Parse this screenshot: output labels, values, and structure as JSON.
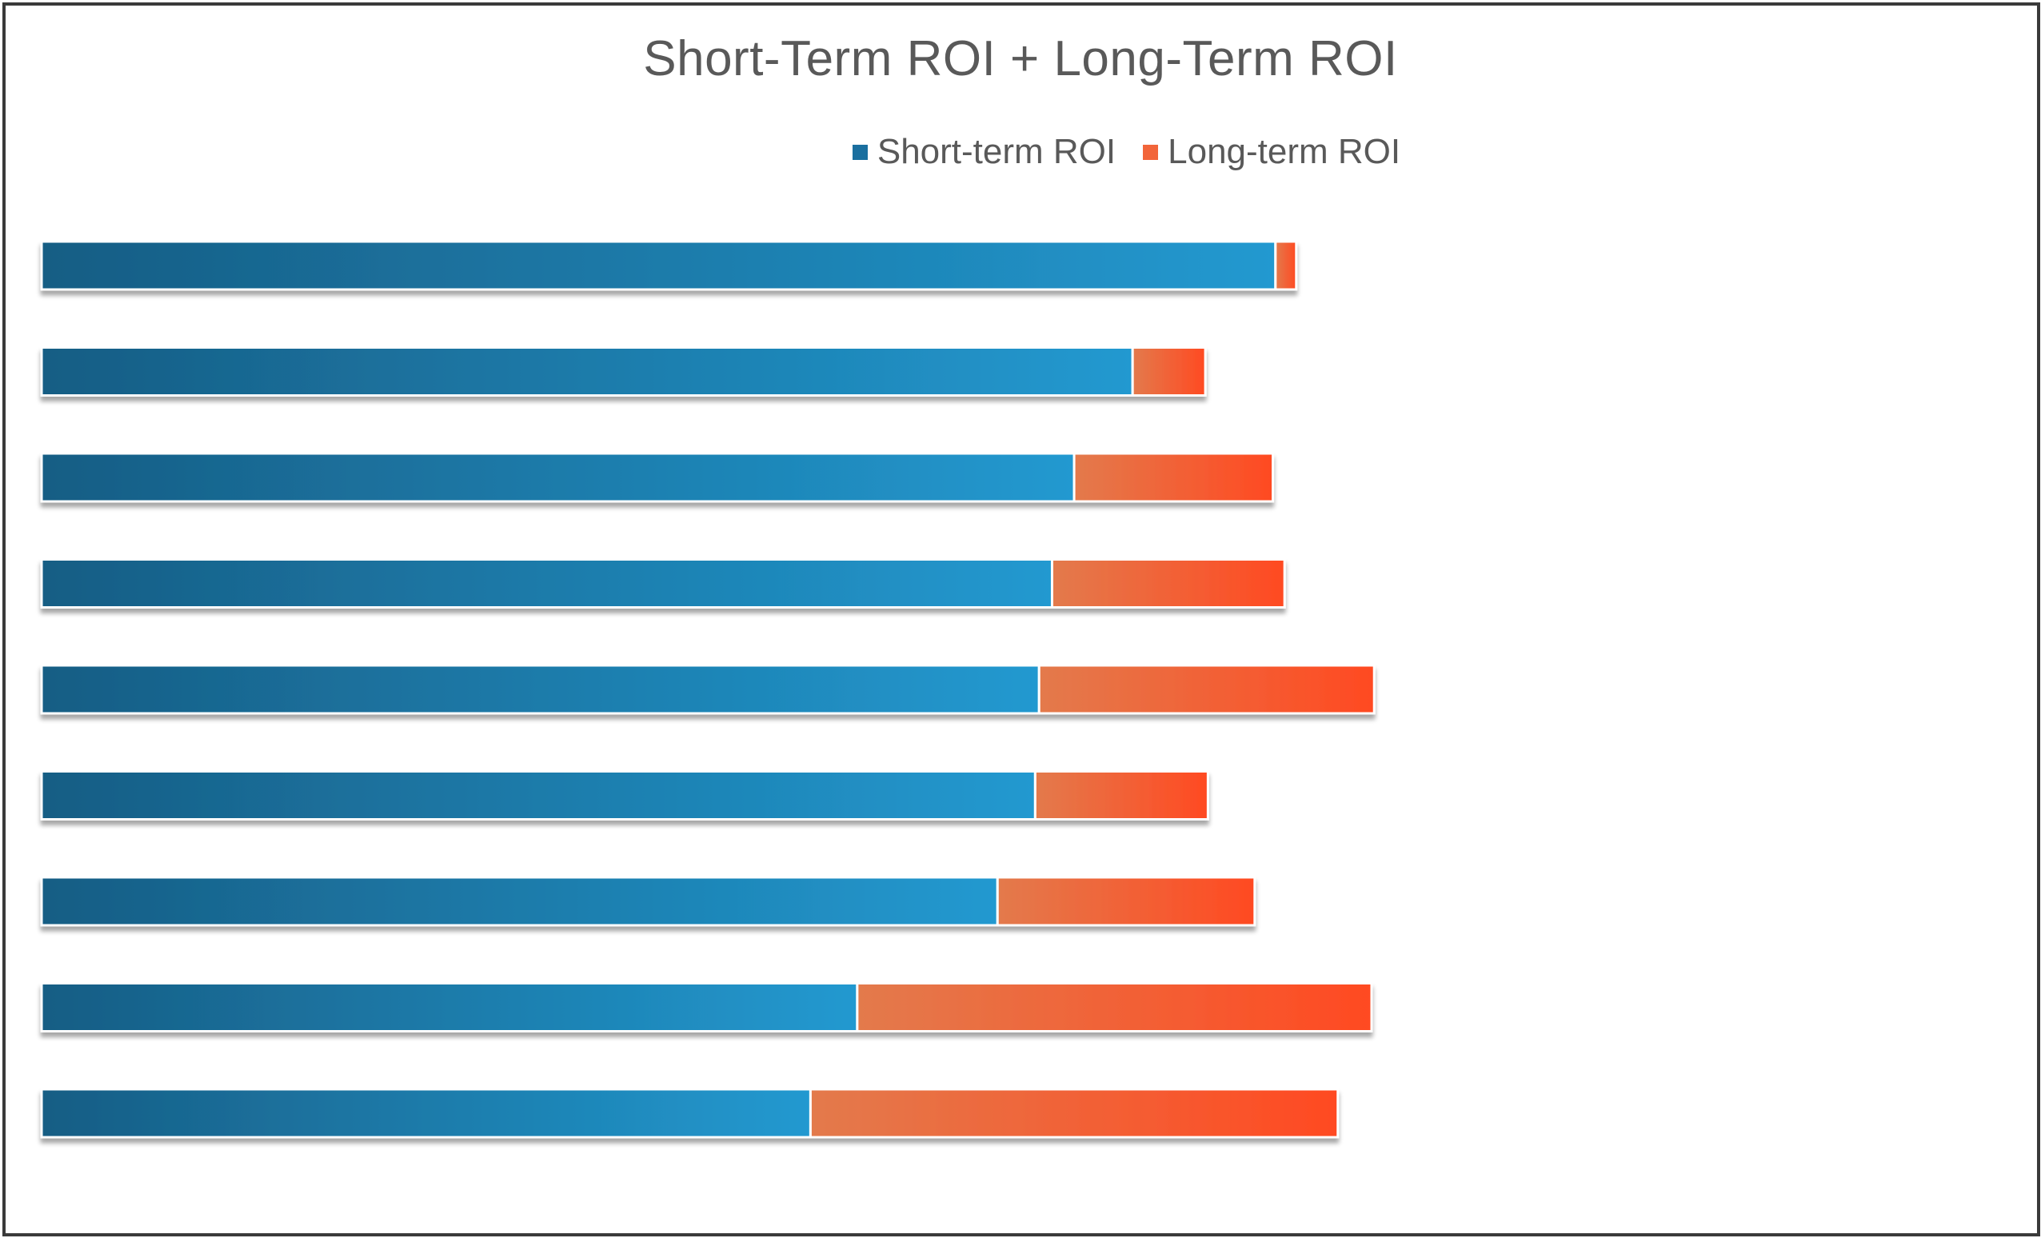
{
  "chart_data": {
    "type": "bar",
    "orientation": "horizontal",
    "stacked": true,
    "title": "Short-Term ROI + Long-Term ROI",
    "xlabel": "",
    "ylabel": "",
    "categories": [
      "",
      "",
      "",
      "",
      "",
      "",
      "",
      "",
      ""
    ],
    "series": [
      {
        "name": "Short-term ROI",
        "color": "#1f7fb4",
        "values": [
          95,
          84,
          79.5,
          77.8,
          76.8,
          76.5,
          73.6,
          62.8,
          59.2
        ]
      },
      {
        "name": "Long-term ROI",
        "color": "#f2653a",
        "values": [
          1.6,
          5.6,
          15.3,
          17.9,
          25.8,
          13.3,
          19.8,
          39.6,
          40.6
        ]
      }
    ],
    "xlim": [
      0,
      125
    ],
    "grid": false,
    "legend_position": "top-center"
  }
}
